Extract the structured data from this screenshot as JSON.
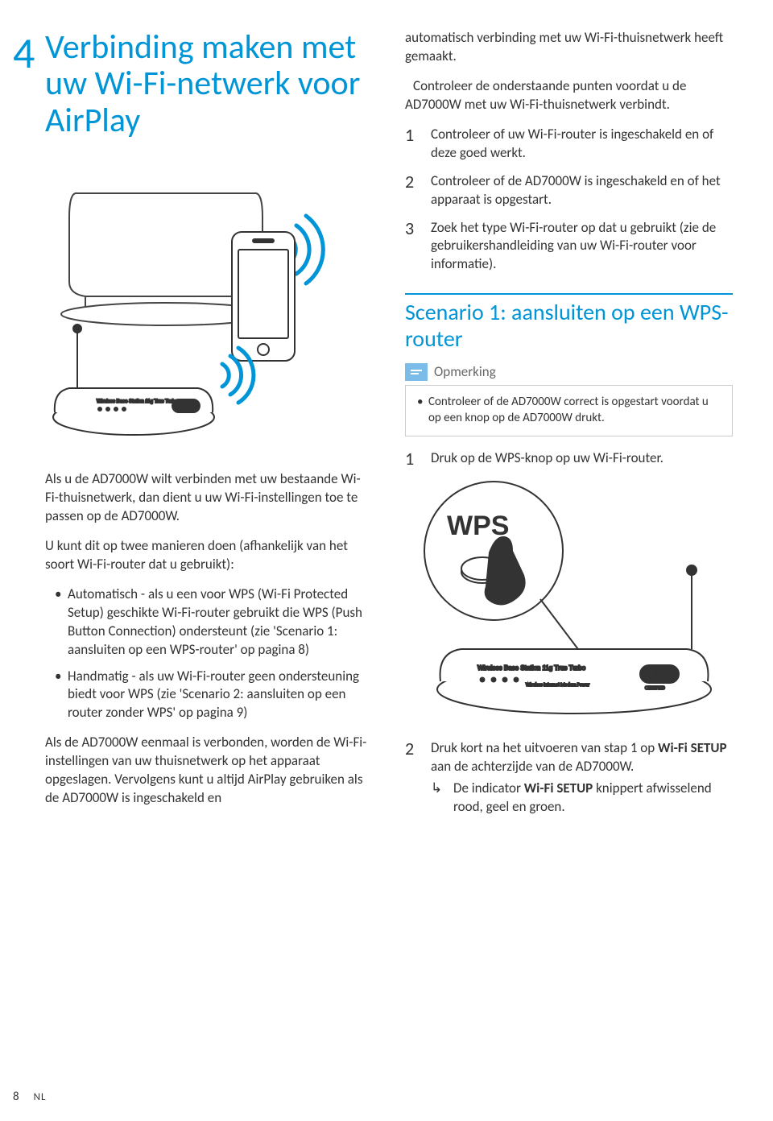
{
  "chapter_number": "4",
  "title": "Verbinding maken met uw Wi-Fi-netwerk voor AirPlay",
  "left": {
    "intro1": "Als u de AD7000W wilt verbinden met uw bestaande Wi-Fi-thuisnetwerk, dan dient u uw Wi-Fi-instellingen toe te passen op de AD7000W.",
    "intro2": "U kunt dit op twee manieren doen (afhankelijk van het soort Wi-Fi-router dat u gebruikt):",
    "bullet1": "Automatisch - als u een voor WPS (Wi-Fi Protected Setup) geschikte Wi-Fi-router gebruikt die WPS (Push Button Connection) ondersteunt (zie 'Scenario 1: aansluiten op een WPS-router' op pagina 8)",
    "bullet2": "Handmatig - als uw Wi-Fi-router geen ondersteuning biedt voor WPS (zie 'Scenario 2: aansluiten op een router zonder WPS' op pagina 9)",
    "para3": "Als de AD7000W eenmaal is verbonden, worden de Wi-Fi-instellingen van uw thuisnetwerk op het apparaat opgeslagen. Vervolgens kunt u altijd AirPlay gebruiken als de AD7000W is ingeschakeld en"
  },
  "right": {
    "cont": "automatisch verbinding met uw Wi-Fi-thuisnetwerk heeft gemaakt.",
    "check_intro": "Controleer de onderstaande punten voordat u de AD7000W met uw Wi-Fi-thuisnetwerk verbindt.",
    "step1": "Controleer of uw Wi-Fi-router is ingeschakeld en of deze goed werkt.",
    "step2": "Controleer of de AD7000W is ingeschakeld en of het apparaat is opgestart.",
    "step3": "Zoek het type Wi-Fi-router op dat u gebruikt (zie de gebruikershandleiding van uw Wi-Fi-router voor informatie).",
    "h2": "Scenario 1: aansluiten op een WPS-router",
    "note_label": "Opmerking",
    "note_text": "Controleer of de AD7000W correct is opgestart voordat u op een knop op de AD7000W drukt.",
    "s1_step1": "Druk op de WPS-knop op uw Wi-Fi-router.",
    "s1_step2": "Druk kort na het uitvoeren van stap 1 op Wi-Fi SETUP aan de achterzijde van de AD7000W.",
    "s1_step2_arrow": "De indicator Wi-Fi SETUP knippert afwisselend rood, geel en groen.",
    "wps_label": "WPS"
  },
  "footer": {
    "page": "8",
    "lang": "NL"
  },
  "colors": {
    "accent": "#0095d6",
    "noteIcon": "#7bbde8",
    "text": "#333"
  }
}
